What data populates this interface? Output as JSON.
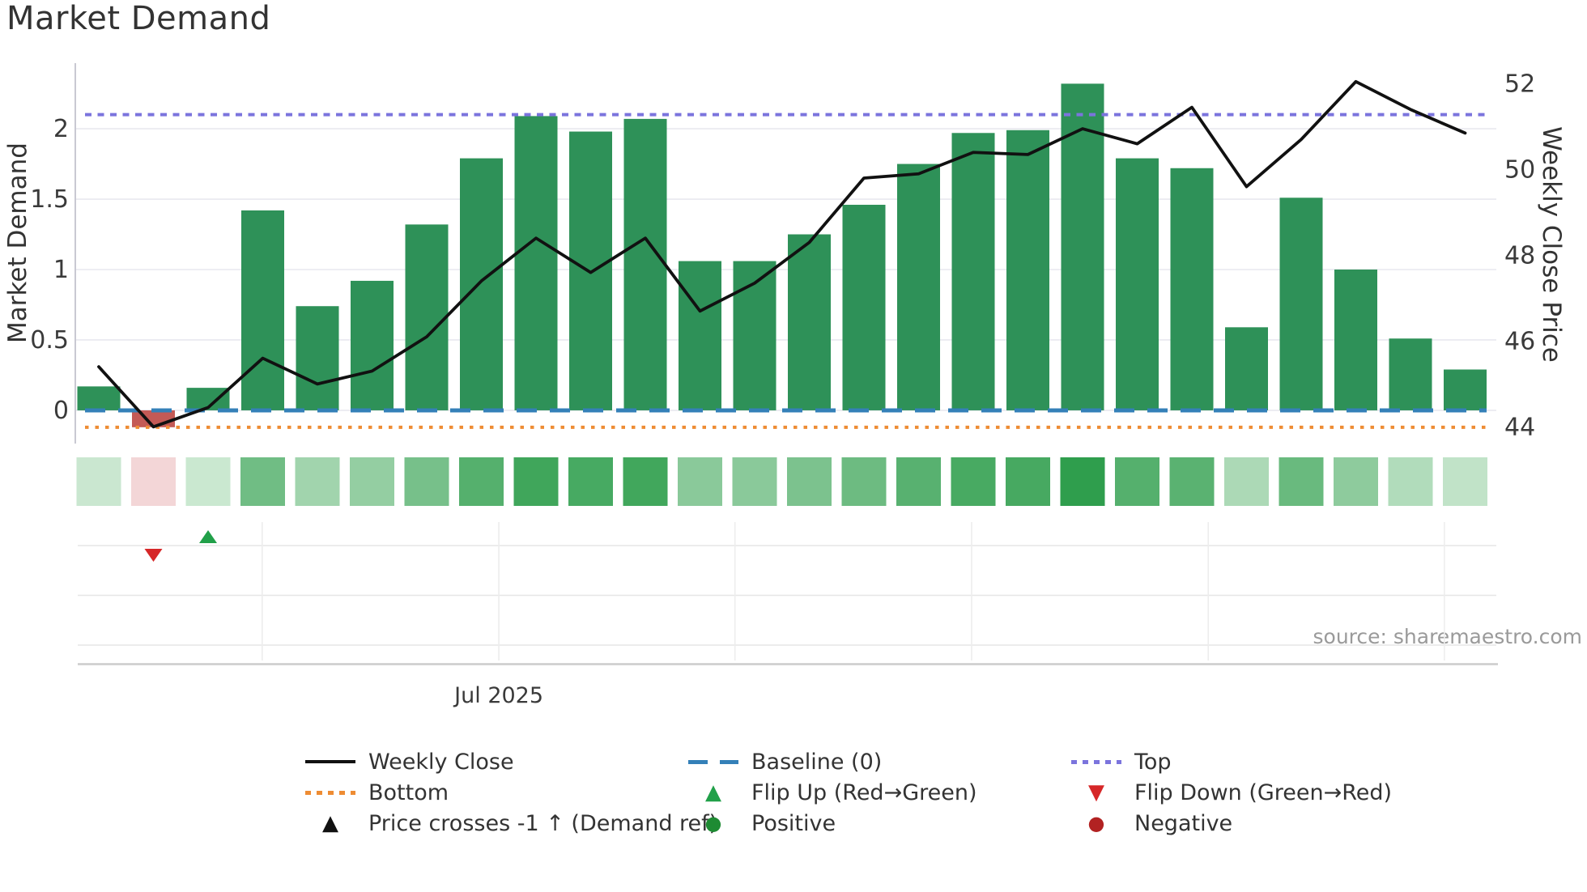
{
  "title": "Market Demand",
  "axes": {
    "left_label": "Market Demand",
    "right_label": "Weekly Close Price",
    "left_ticks": [
      "2",
      "1.5",
      "1",
      "0.5",
      "0"
    ],
    "left_tick_values": [
      2,
      1.5,
      1,
      0.5,
      0
    ],
    "right_ticks": [
      "52",
      "50",
      "48",
      "46",
      "44"
    ],
    "right_tick_values": [
      52,
      50,
      48,
      46,
      44
    ],
    "x_tick_label": "Jul 2025"
  },
  "source_note": "source: sharemaestro.com",
  "legend": {
    "weekly_close": "Weekly Close",
    "baseline": "Baseline (0)",
    "top": "Top",
    "bottom": "Bottom",
    "flip_up": "Flip Up (Red→Green)",
    "flip_down": "Flip Down (Green→Red)",
    "price_crosses": "Price crosses -1 ↑ (Demand ref)",
    "positive": "Positive",
    "negative": "Negative"
  },
  "colors": {
    "bar_positive": "#2e9158",
    "bar_negative": "#c45a56",
    "price_line": "#111111",
    "baseline": "#3480b8",
    "top_line": "#7b74dd",
    "bottom_line": "#ee8c33",
    "flip_up": "#21a049",
    "flip_down": "#d62728",
    "positive_dot": "#1e8b33",
    "negative_dot": "#b22222",
    "heat_negative": "#f3d6d7",
    "heat_min": "#d6edda",
    "heat_max": "#2f9e4d",
    "grid": "#e8e8ef",
    "spine": "#c9c9d2",
    "tick_text": "#3a3a3a",
    "source_text": "#9a9a9a"
  },
  "chart_data": {
    "type": "combo_bar_line",
    "title": "Market Demand",
    "n_points": 26,
    "x_unit": "week",
    "series": [
      {
        "name": "Market Demand",
        "type": "bar",
        "axis": "left",
        "values": [
          0.17,
          -0.12,
          0.16,
          1.42,
          0.74,
          0.92,
          1.32,
          1.79,
          2.09,
          1.98,
          2.07,
          1.06,
          1.06,
          1.25,
          1.46,
          1.75,
          1.97,
          1.99,
          2.32,
          1.79,
          1.72,
          0.59,
          1.51,
          1.0,
          0.51,
          0.29
        ]
      },
      {
        "name": "Weekly Close",
        "type": "line",
        "axis": "right",
        "values": [
          45.4,
          44.0,
          44.45,
          45.6,
          45.0,
          45.3,
          46.1,
          47.4,
          48.4,
          47.6,
          48.4,
          46.7,
          47.35,
          48.3,
          49.8,
          49.9,
          50.4,
          50.35,
          50.95,
          50.6,
          51.45,
          49.6,
          50.7,
          52.05,
          51.4,
          50.85
        ]
      }
    ],
    "reference_lines": [
      {
        "name": "Top",
        "axis": "left",
        "value": 2.1,
        "style": "dotted",
        "color_key": "top_line"
      },
      {
        "name": "Baseline (0)",
        "axis": "left",
        "value": 0,
        "style": "dashed",
        "color_key": "baseline"
      },
      {
        "name": "Bottom",
        "axis": "left",
        "value": -0.12,
        "style": "dotted",
        "color_key": "bottom_line"
      }
    ],
    "flip_markers": [
      {
        "type": "flip_down",
        "week_index": 1
      },
      {
        "type": "flip_up",
        "week_index": 2
      }
    ],
    "heatmap_row": {
      "encodes": "Market Demand bar values as green intensity, pink when negative",
      "values_same_as_bars": true,
      "max_value_for_scale": 2.32
    },
    "ylim_left": [
      -0.236,
      2.466
    ],
    "ylim_right": [
      43.61,
      52.48
    ],
    "x_axis": {
      "tick_label": "Jul 2025",
      "tick_week_index": 7.32,
      "month_gridline_week_indices": [
        2.99,
        7.32,
        11.64,
        15.97,
        20.3,
        24.62
      ]
    },
    "grid": "horizontal light gridlines at left-axis ticks",
    "legend_position": "bottom, three columns"
  }
}
